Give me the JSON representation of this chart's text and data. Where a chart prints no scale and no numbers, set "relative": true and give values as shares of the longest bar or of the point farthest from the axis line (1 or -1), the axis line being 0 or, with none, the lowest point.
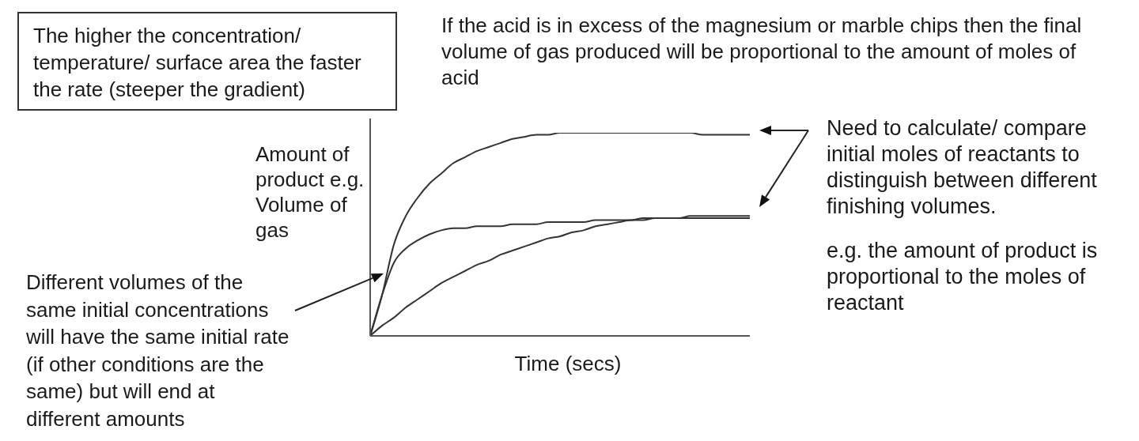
{
  "chart_data": {
    "type": "line",
    "relative": true,
    "xlabel": "Time (secs)",
    "ylabel": "Amount of product e.g. Volume of gas",
    "categories": [
      null,
      null,
      null,
      null,
      null,
      null,
      null,
      null,
      null,
      null,
      null,
      null,
      null,
      null,
      null,
      null,
      null,
      null,
      null,
      null,
      null,
      null,
      null,
      null,
      null,
      null,
      null,
      null,
      null,
      null,
      null,
      null,
      null
    ],
    "series": [
      {
        "color": "#333333",
        "values": [
          0,
          0.2,
          0.45,
          0.59,
          0.68,
          0.75,
          0.8,
          0.85,
          0.88,
          0.91,
          0.93,
          0.95,
          0.97,
          0.98,
          0.99,
          0.99,
          1,
          1,
          1,
          1,
          1,
          1,
          1,
          1,
          1,
          1,
          1,
          1,
          0.99,
          0.99,
          0.99,
          0.99,
          0.99
        ]
      },
      {
        "color": "#333333",
        "values": [
          0,
          0.2,
          0.36,
          0.43,
          0.47,
          0.5,
          0.52,
          0.53,
          0.53,
          0.54,
          0.54,
          0.54,
          0.55,
          0.55,
          0.55,
          0.56,
          0.56,
          0.56,
          0.56,
          0.57,
          0.57,
          0.57,
          0.57,
          0.58,
          0.58,
          0.58,
          0.58,
          0.58,
          0.58,
          0.58,
          0.58,
          0.58,
          0.58
        ]
      },
      {
        "color": "#333333",
        "values": [
          0,
          0.05,
          0.09,
          0.14,
          0.18,
          0.22,
          0.26,
          0.29,
          0.32,
          0.35,
          0.37,
          0.4,
          0.42,
          0.44,
          0.46,
          0.48,
          0.49,
          0.51,
          0.52,
          0.54,
          0.55,
          0.56,
          0.57,
          0.57,
          0.58,
          0.58,
          0.58,
          0.59,
          0.59,
          0.59,
          0.59,
          0.59,
          0.59
        ]
      }
    ],
    "annotations": [
      "The higher the concentration/ temperature/ surface area the faster the rate (steeper the gradient)",
      "If the acid is in excess of the magnesium or marble chips then the final volume of gas produced will be proportional to the amount of moles of acid",
      "Need to calculate/ compare initial moles of reactants to distinguish between different finishing volumes.",
      "e.g. the amount of product is proportional to the moles of reactant",
      "Different volumes of the same initial concentrations will have the same initial rate (if other conditions are the same) but will end at different amounts"
    ]
  }
}
